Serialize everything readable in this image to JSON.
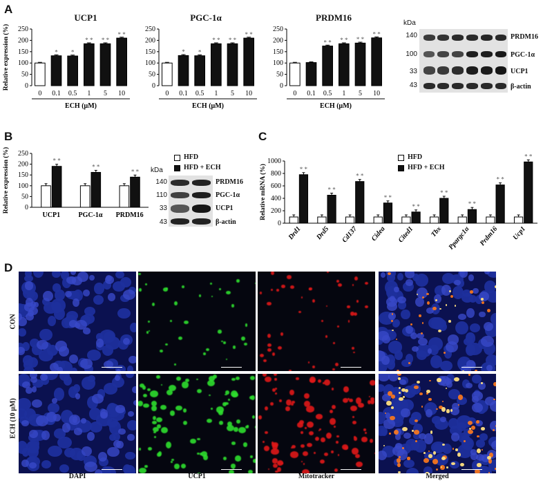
{
  "panels": {
    "a": "A",
    "b": "B",
    "c": "C",
    "d": "D"
  },
  "chart_data": [
    {
      "type": "bar",
      "title": "UCP1",
      "ylabel": "Relative expression (%)",
      "xlabel": "ECH (μM)",
      "categories": [
        "0",
        "0.1",
        "0.5",
        "1",
        "5",
        "10"
      ],
      "values": [
        100,
        132,
        131,
        185,
        185,
        210
      ],
      "errors": [
        3,
        4,
        4,
        4,
        4,
        4
      ],
      "significance": [
        "",
        "*",
        "*",
        "* *",
        "* *",
        "* *"
      ],
      "ylim": [
        0,
        250
      ],
      "yticks": [
        0,
        50,
        100,
        150,
        200,
        250
      ]
    },
    {
      "type": "bar",
      "title": "PGC-1α",
      "ylabel": "",
      "xlabel": "ECH (μM)",
      "categories": [
        "0",
        "0.1",
        "0.5",
        "1",
        "5",
        "10"
      ],
      "values": [
        100,
        133,
        132,
        185,
        185,
        210
      ],
      "errors": [
        3,
        4,
        4,
        4,
        4,
        4
      ],
      "significance": [
        "",
        "*",
        "*",
        "* *",
        "* *",
        "* *"
      ],
      "ylim": [
        0,
        250
      ],
      "yticks": [
        0,
        50,
        100,
        150,
        200,
        250
      ]
    },
    {
      "type": "bar",
      "title": "PRDM16",
      "ylabel": "",
      "xlabel": "ECH (μM)",
      "categories": [
        "0",
        "0.1",
        "0.5",
        "1",
        "5",
        "10"
      ],
      "values": [
        100,
        102,
        175,
        185,
        188,
        211
      ],
      "errors": [
        3,
        3,
        4,
        4,
        4,
        4
      ],
      "significance": [
        "",
        "",
        "* *",
        "* *",
        "* *",
        "* *"
      ],
      "ylim": [
        0,
        250
      ],
      "yticks": [
        0,
        50,
        100,
        150,
        200,
        250
      ]
    },
    {
      "type": "bar",
      "title": "",
      "ylabel": "Relative expression (%)",
      "xlabel": "",
      "categories": [
        "UCP1",
        "PGC-1α",
        "PRDM16"
      ],
      "series": [
        {
          "name": "HFD",
          "values": [
            100,
            100,
            100
          ]
        },
        {
          "name": "HFD + ECH",
          "values": [
            190,
            162,
            140
          ]
        }
      ],
      "significance": [
        "* *",
        "* *",
        "* *"
      ],
      "ylim": [
        0,
        250
      ],
      "yticks": [
        0,
        50,
        100,
        150,
        200,
        250
      ]
    },
    {
      "type": "bar",
      "title": "",
      "ylabel": "Relative mRNA (%)",
      "xlabel": "",
      "categories": [
        "Drd1",
        "Drd5",
        "Cd137",
        "Cidea",
        "Cited1",
        "Tbx",
        "Ppargc1α",
        "Prdm16",
        "Ucp1"
      ],
      "series": [
        {
          "name": "HFD",
          "values": [
            100,
            100,
            100,
            100,
            100,
            100,
            100,
            100,
            100
          ]
        },
        {
          "name": "HFD + ECH",
          "values": [
            780,
            450,
            670,
            325,
            180,
            400,
            220,
            615,
            985
          ]
        }
      ],
      "significance": [
        "* *",
        "* *",
        "* *",
        "* *",
        "* *",
        "* *",
        "* *",
        "* *",
        "* *"
      ],
      "ylim": [
        0,
        1000
      ],
      "yticks": [
        0,
        200,
        400,
        600,
        800,
        1000
      ]
    }
  ],
  "blot_a": {
    "kda_header": "kDa",
    "rows": [
      {
        "kda": "140",
        "label": "PRDM16"
      },
      {
        "kda": "100",
        "label": "PGC-1α"
      },
      {
        "kda": "33",
        "label": "UCP1"
      },
      {
        "kda": "43",
        "label": "β-actin"
      }
    ]
  },
  "blot_b": {
    "kda_header": "kDa",
    "rows": [
      {
        "kda": "140",
        "label": "PRDM16"
      },
      {
        "kda": "110",
        "label": "PGC-1α"
      },
      {
        "kda": "33",
        "label": "UCP1"
      },
      {
        "kda": "43",
        "label": "β-actin"
      }
    ]
  },
  "legend_b": {
    "hfd": "HFD",
    "ech": "HFD + ECH"
  },
  "legend_c": {
    "hfd": "HFD",
    "ech": "HFD + ECH"
  },
  "micrographs": {
    "columns": [
      "DAPI",
      "UCP1",
      "Mitotracker",
      "Merged"
    ],
    "rows": [
      "CON",
      "ECH (10 μM)"
    ],
    "colors": {
      "dapi": "#1e2f9c",
      "ucp1": "#2ede2e",
      "mito": "#e01818",
      "bg": "#05060f"
    }
  }
}
